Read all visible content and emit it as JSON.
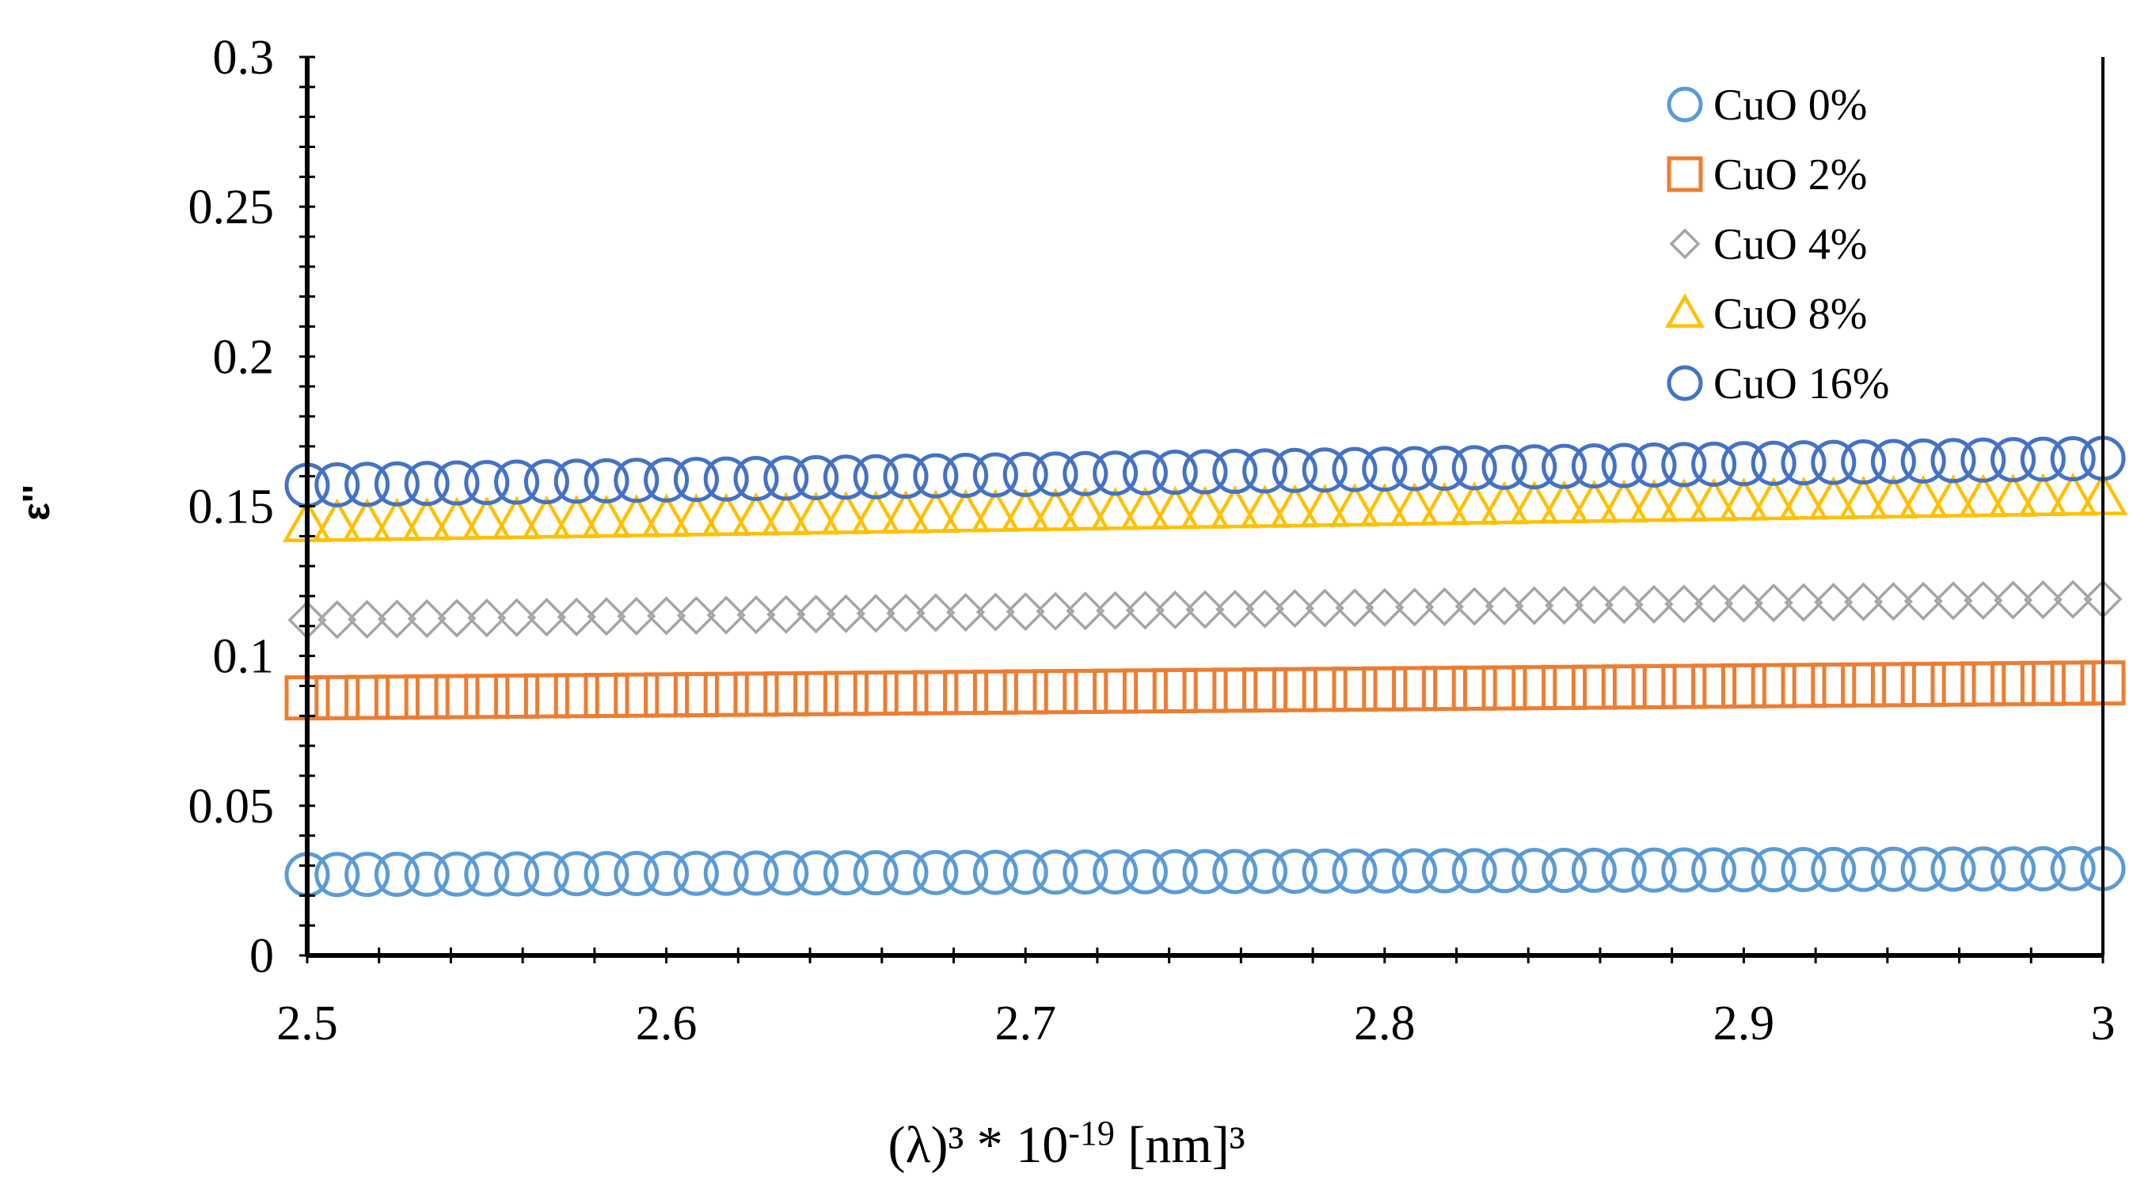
{
  "chart_data": {
    "type": "scatter",
    "title": "",
    "xlabel": "(λ)³ * 10⁻¹⁹ [nm]³",
    "xlabel_parts": {
      "prefix": "(λ)³ * 10",
      "exponent": "-19",
      "suffix": " [nm]³"
    },
    "ylabel": "ε''",
    "xlim": [
      2.5,
      3.0
    ],
    "ylim": [
      0,
      0.3
    ],
    "x_ticks": [
      2.5,
      2.6,
      2.7,
      2.8,
      2.9,
      3.0
    ],
    "x_tick_labels": [
      "2.5",
      "2.6",
      "2.7",
      "2.8",
      "2.9",
      "3"
    ],
    "y_ticks": [
      0,
      0.05,
      0.1,
      0.15,
      0.2,
      0.25,
      0.3
    ],
    "y_tick_labels": [
      "0",
      "0.05",
      "0.1",
      "0.15",
      "0.2",
      "0.25",
      "0.3"
    ],
    "grid": false,
    "legend_position": "top-right",
    "x_sampling": {
      "start": 2.5,
      "end": 3.0,
      "count": 61
    },
    "series": [
      {
        "name": "CuO 0%",
        "marker": "circle",
        "color": "#5B9BD5",
        "start": 0.027,
        "end": 0.029
      },
      {
        "name": "CuO 2%",
        "marker": "square",
        "color": "#ED7D31",
        "start": 0.086,
        "end": 0.091
      },
      {
        "name": "CuO 4%",
        "marker": "diamond",
        "color": "#A5A5A5",
        "start": 0.112,
        "end": 0.119
      },
      {
        "name": "CuO 8%",
        "marker": "triangle",
        "color": "#FFC000",
        "start": 0.144,
        "end": 0.153
      },
      {
        "name": "CuO 16%",
        "marker": "circle",
        "color": "#4472C4",
        "start": 0.157,
        "end": 0.166
      }
    ]
  }
}
